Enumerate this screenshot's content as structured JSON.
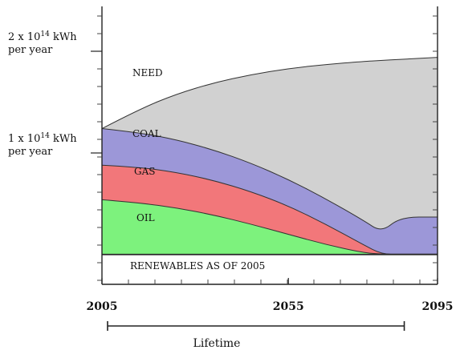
{
  "chart_data": {
    "type": "area",
    "x": [
      2005,
      2015,
      2025,
      2035,
      2045,
      2055,
      2065,
      2075,
      2080,
      2085,
      2095
    ],
    "xlim": [
      2005,
      2095
    ],
    "ylim": [
      0,
      2
    ],
    "x_ticks": [
      2005,
      2055,
      2095
    ],
    "y_ticks": [
      {
        "value": 1,
        "label_line1": "1 x 10",
        "label_exp": "14",
        "label_unit": " kWh",
        "label_line2": "per year"
      },
      {
        "value": 2,
        "label_line1": "2 x 10",
        "label_exp": "14",
        "label_unit": " kWh",
        "label_line2": "per year"
      }
    ],
    "series": [
      {
        "name": "RENEWABLES AS OF 2005",
        "color": "#ffffff",
        "top": [
          0.005,
          0.005,
          0.005,
          0.005,
          0.005,
          0.005,
          0.005,
          0.005,
          0.005,
          0.005,
          0.005
        ]
      },
      {
        "name": "OIL",
        "color": "#7df27d",
        "top": [
          0.54,
          0.51,
          0.46,
          0.39,
          0.3,
          0.2,
          0.1,
          0.02,
          0.005,
          0.005,
          0.005
        ]
      },
      {
        "name": "GAS",
        "color": "#f2777a",
        "top": [
          0.88,
          0.86,
          0.81,
          0.73,
          0.62,
          0.48,
          0.3,
          0.1,
          0.005,
          0.005,
          0.005
        ]
      },
      {
        "name": "COAL",
        "color": "#9c97d8",
        "top": [
          1.24,
          1.2,
          1.13,
          1.03,
          0.9,
          0.74,
          0.55,
          0.34,
          0.22,
          0.37,
          0.37
        ]
      },
      {
        "name": "NEED",
        "color": "#d1d1d1",
        "top": [
          1.24,
          1.43,
          1.58,
          1.69,
          1.77,
          1.83,
          1.87,
          1.9,
          1.91,
          1.92,
          1.94
        ]
      }
    ],
    "lifetime": {
      "label": "Lifetime",
      "from": 2005,
      "to": 2085
    },
    "grid": false
  }
}
